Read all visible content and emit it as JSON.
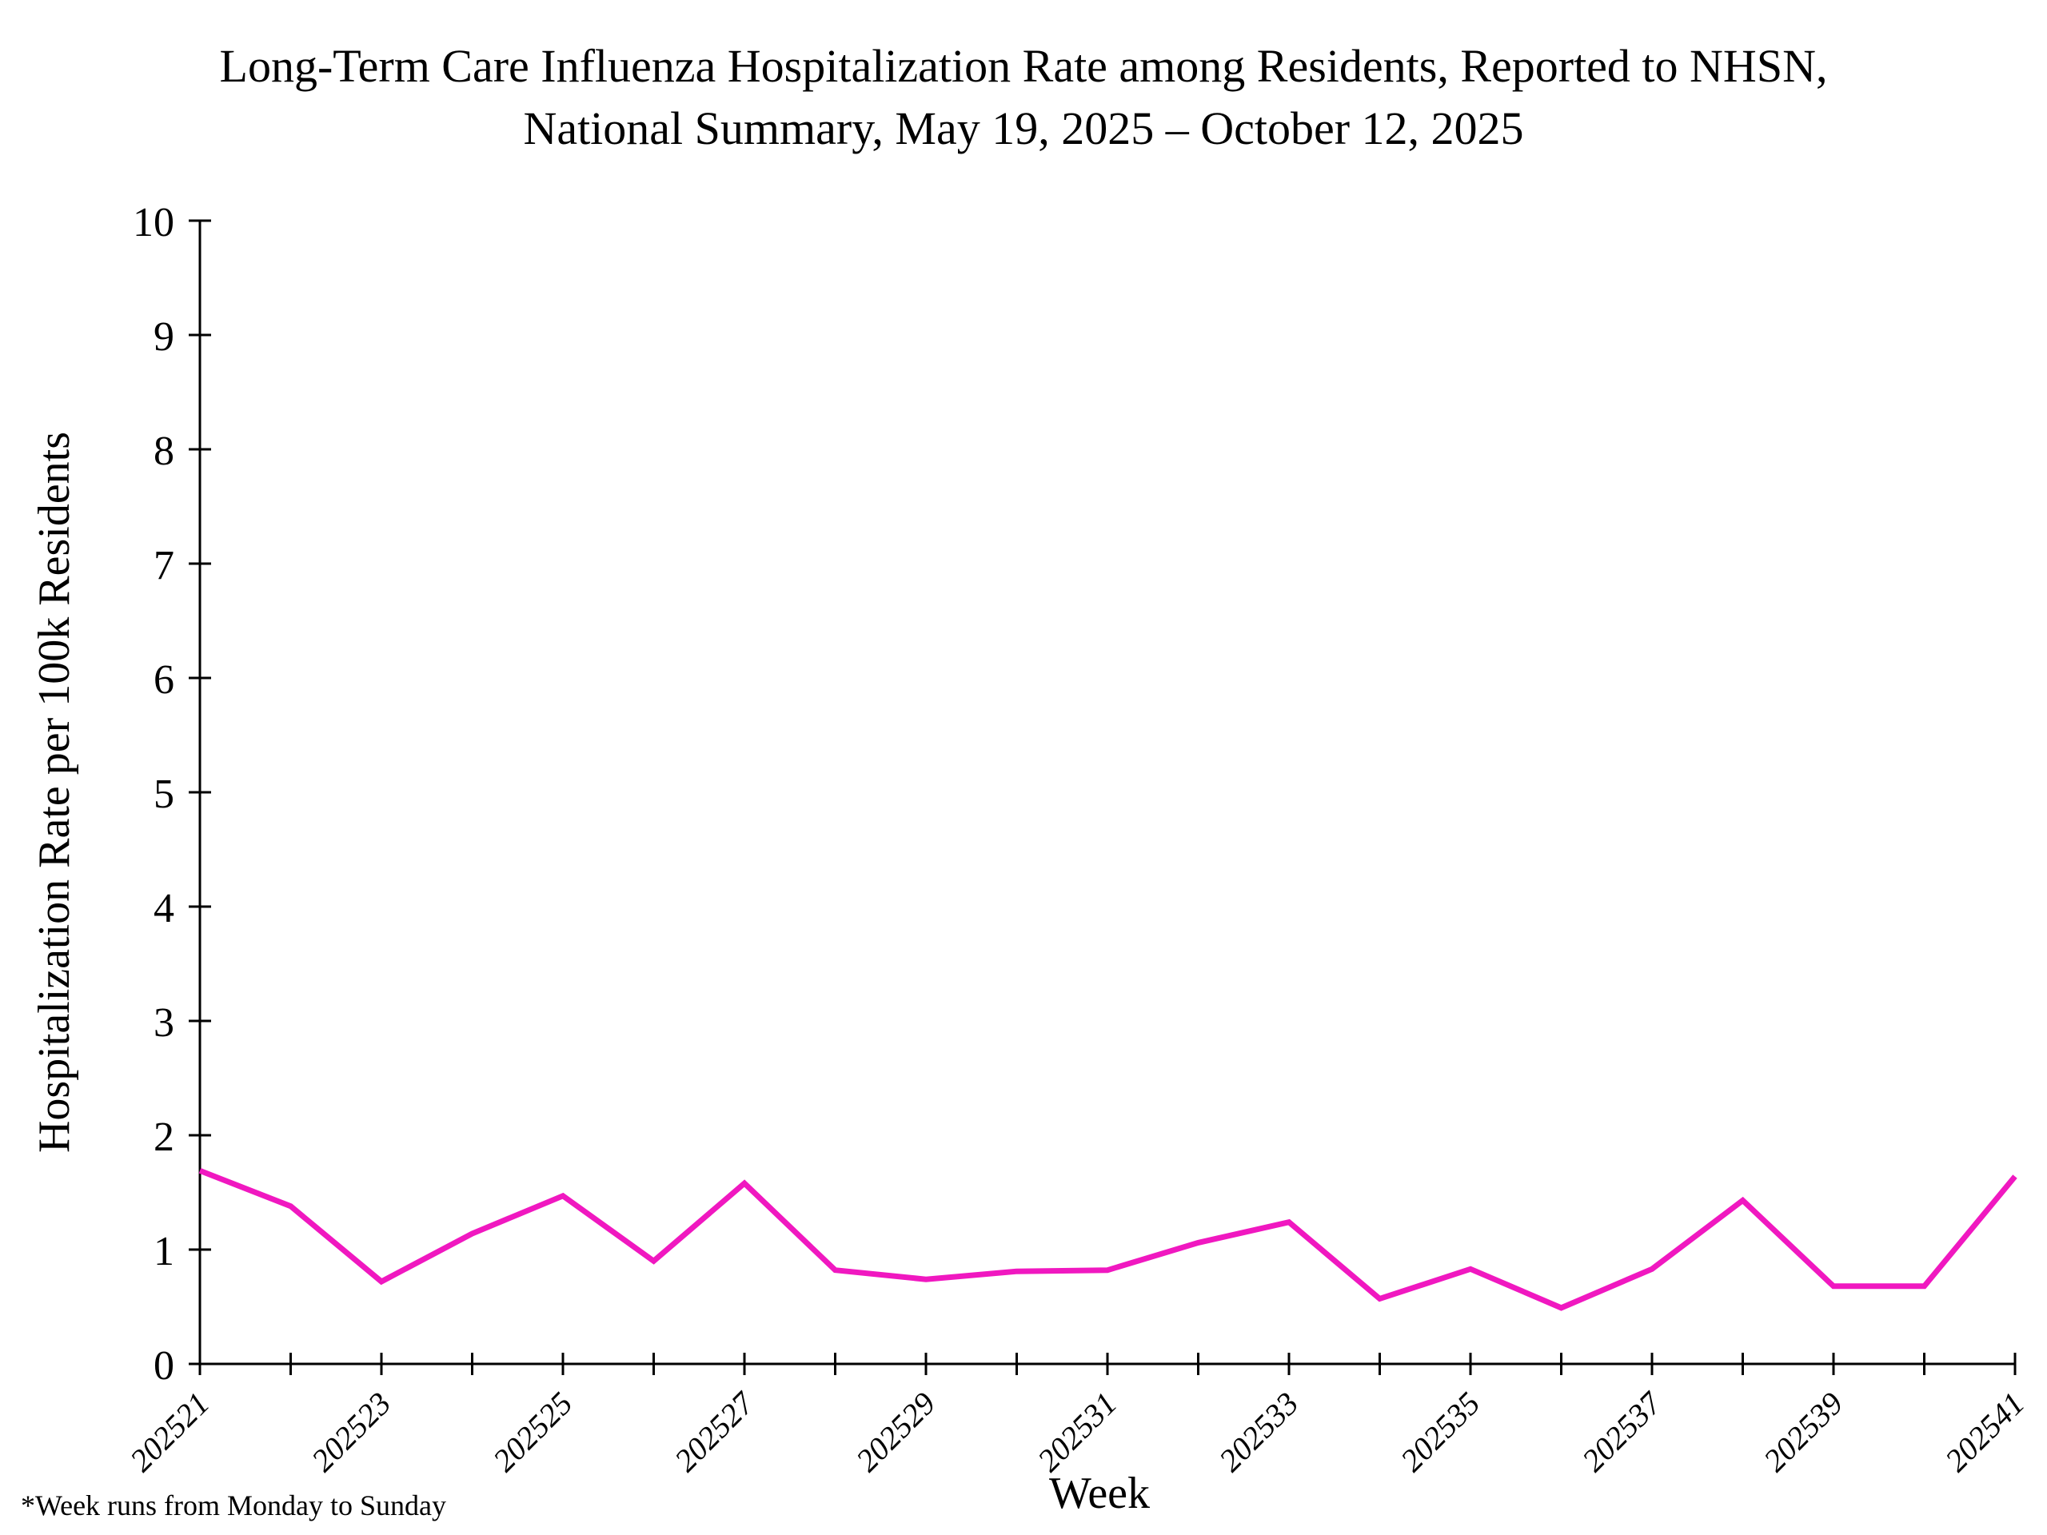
{
  "title": {
    "line1": "Long-Term Care Influenza Hospitalization Rate among Residents, Reported to NHSN,",
    "line2": "National Summary, May 19, 2025 – October 12, 2025"
  },
  "footnote": "*Week runs from Monday to Sunday",
  "chart_data": {
    "type": "line",
    "title": "Long-Term Care Influenza Hospitalization Rate among Residents, Reported to NHSN, National Summary, May 19, 2025 – October 12, 2025",
    "xlabel": "Week",
    "ylabel": "Hospitalization Rate per 100k Residents",
    "x": [
      "202521",
      "202522",
      "202523",
      "202524",
      "202525",
      "202526",
      "202527",
      "202528",
      "202529",
      "202530",
      "202531",
      "202532",
      "202533",
      "202534",
      "202535",
      "202536",
      "202537",
      "202538",
      "202539",
      "202540",
      "202541"
    ],
    "values": [
      1.69,
      1.38,
      0.72,
      1.14,
      1.47,
      0.9,
      1.58,
      0.82,
      0.74,
      0.81,
      0.82,
      1.06,
      1.24,
      0.57,
      0.83,
      0.49,
      0.83,
      1.43,
      0.68,
      0.68,
      1.64
    ],
    "labeled_xticks": [
      "202521",
      "202523",
      "202525",
      "202527",
      "202529",
      "202531",
      "202533",
      "202535",
      "202537",
      "202539",
      "202541"
    ],
    "yticks": [
      0,
      1,
      2,
      3,
      4,
      5,
      6,
      7,
      8,
      9,
      10
    ],
    "ylim": [
      0,
      10
    ],
    "grid": false,
    "legend": null,
    "line_color": "#F018C0",
    "axis_color": "#000000"
  }
}
